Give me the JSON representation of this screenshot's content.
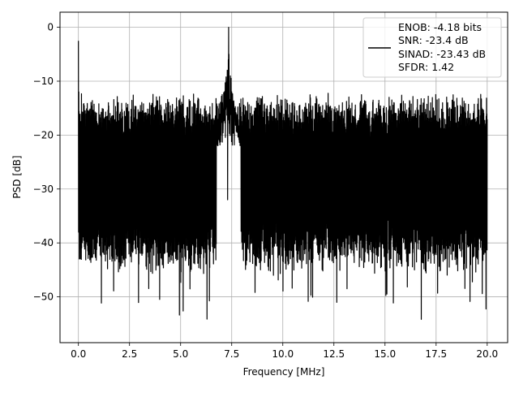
{
  "chart_data": {
    "type": "line",
    "title": "",
    "xlabel": "Frequency [MHz]",
    "ylabel": "PSD [dB]",
    "xlim": [
      -0.9,
      21.0
    ],
    "ylim": [
      -58.5,
      2.8
    ],
    "xticks": [
      0.0,
      2.5,
      5.0,
      7.5,
      10.0,
      12.5,
      15.0,
      17.5,
      20.0
    ],
    "xtick_labels": [
      "0.0",
      "2.5",
      "5.0",
      "7.5",
      "10.0",
      "12.5",
      "15.0",
      "17.5",
      "20.0"
    ],
    "yticks": [
      0,
      -10,
      -20,
      -30,
      -40,
      -50
    ],
    "ytick_labels": [
      "0",
      "−10",
      "−20",
      "−30",
      "−40",
      "−50"
    ],
    "grid": true,
    "legend_placement": "upper right",
    "series": [
      {
        "name": "ENOB: -4.18 bits\nSNR: -23.4 dB\nSINAD: -23.43 dB\nSFDR: 1.42",
        "color": "#000000",
        "description_values": {
          "x_range": [
            0.0,
            20.0
          ],
          "peak": {
            "x": 7.35,
            "y": 0.0
          },
          "dc_spike": {
            "x": 0.0,
            "y": -2.5
          },
          "noise_upper_envelope": [
            -17,
            -12
          ],
          "noise_lower_envelope": [
            -40,
            -56
          ]
        }
      }
    ]
  },
  "legend": {
    "lines": [
      "ENOB: -4.18 bits",
      "SNR: -23.4 dB",
      "SINAD: -23.43 dB",
      "SFDR: 1.42"
    ]
  },
  "colors": {
    "line": "#000000",
    "grid": "#b0b0b0",
    "background": "#ffffff"
  }
}
